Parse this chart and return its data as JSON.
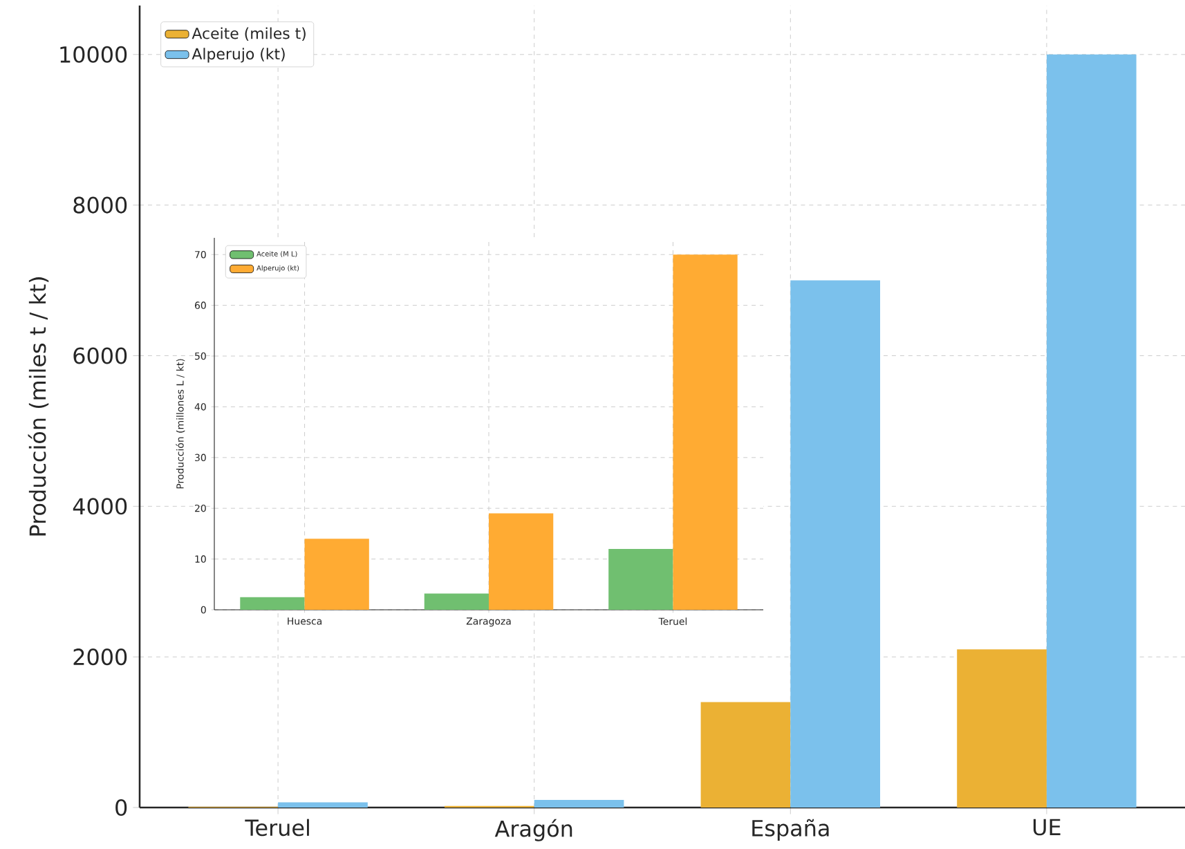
{
  "chart_data": [
    {
      "type": "bar",
      "ylabel": "Producción (miles t / kt)",
      "categories": [
        "Teruel",
        "Aragón",
        "España",
        "UE"
      ],
      "series": [
        {
          "name": "Aceite (miles t)",
          "color": "#ebb134",
          "values": [
            10,
            20,
            1400,
            2100
          ]
        },
        {
          "name": "Alperujo (kt)",
          "color": "#7bc1ec",
          "values": [
            70,
            100,
            7000,
            10000
          ]
        }
      ],
      "ylim": [
        0,
        10650
      ],
      "yticks": [
        0,
        2000,
        4000,
        6000,
        8000,
        10000
      ],
      "grid": true,
      "legend": "top left"
    },
    {
      "type": "bar",
      "ylabel": "Producción (millones L / kt)",
      "categories": [
        "Huesca",
        "Zaragoza",
        "Teruel"
      ],
      "series": [
        {
          "name": "Aceite (M L)",
          "color": "#70bf70",
          "values": [
            2.5,
            3.2,
            12
          ]
        },
        {
          "name": "Alperujo (kt)",
          "color": "#ffab33",
          "values": [
            14,
            19,
            70
          ]
        }
      ],
      "ylim": [
        0,
        73.3
      ],
      "yticks": [
        0,
        10,
        20,
        30,
        40,
        50,
        60,
        70
      ],
      "grid": true,
      "legend": "top left"
    }
  ]
}
